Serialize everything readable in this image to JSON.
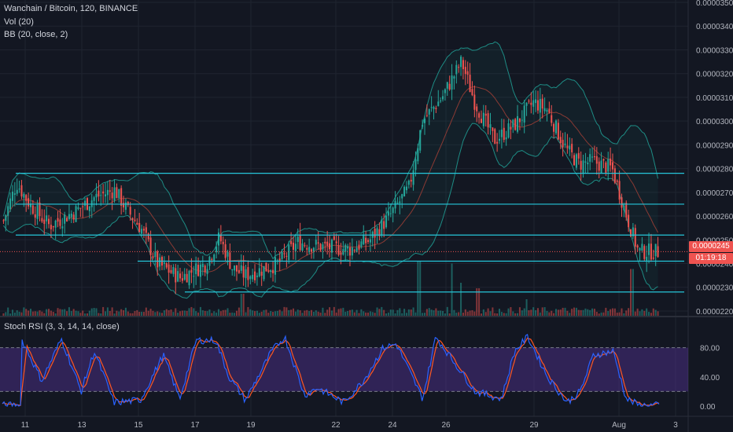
{
  "header": {
    "title": "Wanchain / Bitcoin, 120, BINANCE",
    "vol_label": "Vol (20)",
    "bb_label": "BB (20, close, 2)"
  },
  "rsi": {
    "label": "Stoch RSI (3, 3, 14, 14, close)"
  },
  "price_tag": {
    "value": "0.0000245",
    "countdown": "01:19:18"
  },
  "colors": {
    "background": "#131722",
    "up": "#26a69a",
    "down": "#ef5350",
    "bb": "#1e8c85",
    "basis": "#8a3a34",
    "hline": "#26c6da",
    "k_line": "#2962ff",
    "d_line": "#ff5722",
    "rsi_band": "#4a1a6a"
  },
  "chart_data": [
    {
      "type": "candlestick",
      "title": "Wanchain / Bitcoin, 120, BINANCE",
      "x_tick_labels": [
        "11",
        "13",
        "15",
        "17",
        "19",
        "22",
        "24",
        "26",
        "29",
        "Aug",
        "3"
      ],
      "y_tick_labels": [
        "0.0000220",
        "0.0000230",
        "0.0000240",
        "0.0000250",
        "0.0000260",
        "0.0000270",
        "0.0000280",
        "0.0000290",
        "0.0000300",
        "0.0000310",
        "0.0000320",
        "0.0000330",
        "0.0000340",
        "0.0000350"
      ],
      "ylim": [
        2.18e-05,
        3.51e-05
      ],
      "anchors": [
        {
          "x": 0,
          "y": 2.58e-05
        },
        {
          "x": 0.02,
          "y": 2.74e-05
        },
        {
          "x": 0.04,
          "y": 2.65e-05
        },
        {
          "x": 0.07,
          "y": 2.56e-05
        },
        {
          "x": 0.11,
          "y": 2.62e-05
        },
        {
          "x": 0.14,
          "y": 2.68e-05
        },
        {
          "x": 0.17,
          "y": 2.71e-05
        },
        {
          "x": 0.19,
          "y": 2.62e-05
        },
        {
          "x": 0.21,
          "y": 2.55e-05
        },
        {
          "x": 0.235,
          "y": 2.4e-05
        },
        {
          "x": 0.27,
          "y": 2.34e-05
        },
        {
          "x": 0.31,
          "y": 2.4e-05
        },
        {
          "x": 0.33,
          "y": 2.51e-05
        },
        {
          "x": 0.35,
          "y": 2.38e-05
        },
        {
          "x": 0.37,
          "y": 2.35e-05
        },
        {
          "x": 0.42,
          "y": 2.4e-05
        },
        {
          "x": 0.45,
          "y": 2.49e-05
        },
        {
          "x": 0.49,
          "y": 2.47e-05
        },
        {
          "x": 0.53,
          "y": 2.46e-05
        },
        {
          "x": 0.56,
          "y": 2.5e-05
        },
        {
          "x": 0.59,
          "y": 2.6e-05
        },
        {
          "x": 0.62,
          "y": 2.72e-05
        },
        {
          "x": 0.64,
          "y": 3e-05
        },
        {
          "x": 0.67,
          "y": 3.1e-05
        },
        {
          "x": 0.7,
          "y": 3.25e-05
        },
        {
          "x": 0.72,
          "y": 3.08e-05
        },
        {
          "x": 0.75,
          "y": 2.92e-05
        },
        {
          "x": 0.78,
          "y": 2.98e-05
        },
        {
          "x": 0.81,
          "y": 3.08e-05
        },
        {
          "x": 0.83,
          "y": 3.05e-05
        },
        {
          "x": 0.86,
          "y": 2.88e-05
        },
        {
          "x": 0.88,
          "y": 2.82e-05
        },
        {
          "x": 0.9,
          "y": 2.83e-05
        },
        {
          "x": 0.93,
          "y": 2.8e-05
        },
        {
          "x": 0.95,
          "y": 2.62e-05
        },
        {
          "x": 0.97,
          "y": 2.45e-05
        }
      ],
      "horizontal_levels": [
        2.78e-05,
        2.65e-05,
        2.52e-05,
        2.41e-05,
        2.28e-05
      ],
      "last_price": 2.45e-05,
      "volume_spikes": [
        {
          "x": 0.635,
          "v": 1.0
        },
        {
          "x": 0.685,
          "v": 0.95
        },
        {
          "x": 0.7,
          "v": 0.6
        },
        {
          "x": 0.725,
          "v": 0.5
        },
        {
          "x": 0.8,
          "v": 0.3
        },
        {
          "x": 0.96,
          "v": 0.85
        },
        {
          "x": 0.365,
          "v": 0.4
        }
      ]
    },
    {
      "type": "line",
      "title": "Stoch RSI (3, 3, 14, 14, close)",
      "y_tick_labels": [
        "0.00",
        "40.00",
        "80.00"
      ],
      "ylim": [
        0,
        100
      ],
      "band": [
        20,
        80
      ],
      "peaks": [
        {
          "x": 0.03,
          "y": 90
        },
        {
          "x": 0.06,
          "y": 35
        },
        {
          "x": 0.09,
          "y": 92
        },
        {
          "x": 0.12,
          "y": 20
        },
        {
          "x": 0.14,
          "y": 75
        },
        {
          "x": 0.17,
          "y": 5
        },
        {
          "x": 0.21,
          "y": 8
        },
        {
          "x": 0.245,
          "y": 70
        },
        {
          "x": 0.27,
          "y": 10
        },
        {
          "x": 0.295,
          "y": 90
        },
        {
          "x": 0.325,
          "y": 90
        },
        {
          "x": 0.345,
          "y": 40
        },
        {
          "x": 0.37,
          "y": 8
        },
        {
          "x": 0.41,
          "y": 75
        },
        {
          "x": 0.43,
          "y": 95
        },
        {
          "x": 0.46,
          "y": 15
        },
        {
          "x": 0.48,
          "y": 25
        },
        {
          "x": 0.52,
          "y": 5
        },
        {
          "x": 0.55,
          "y": 35
        },
        {
          "x": 0.58,
          "y": 80
        },
        {
          "x": 0.6,
          "y": 85
        },
        {
          "x": 0.64,
          "y": 10
        },
        {
          "x": 0.66,
          "y": 95
        },
        {
          "x": 0.7,
          "y": 45
        },
        {
          "x": 0.72,
          "y": 20
        },
        {
          "x": 0.76,
          "y": 10
        },
        {
          "x": 0.78,
          "y": 75
        },
        {
          "x": 0.8,
          "y": 95
        },
        {
          "x": 0.83,
          "y": 40
        },
        {
          "x": 0.86,
          "y": 5
        },
        {
          "x": 0.88,
          "y": 20
        },
        {
          "x": 0.9,
          "y": 70
        },
        {
          "x": 0.93,
          "y": 75
        },
        {
          "x": 0.95,
          "y": 10
        },
        {
          "x": 0.97,
          "y": 1
        }
      ]
    }
  ]
}
